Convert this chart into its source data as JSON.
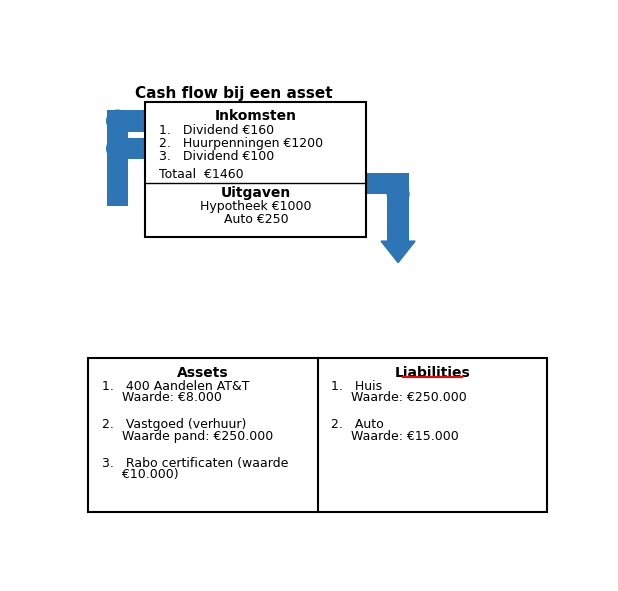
{
  "title": "Cash flow bij een asset",
  "title_fontsize": 11,
  "arrow_color": "#2E75B6",
  "inkomsten_header": "Inkomsten",
  "inkomsten_items": [
    "1.   Dividend €160",
    "2.   Huurpenningen €1200",
    "3.   Dividend €100"
  ],
  "totaal_line": "Totaal  €1460",
  "uitgaven_header": "Uitgaven",
  "uitgaven_items": [
    "Hypotheek €1000",
    "Auto €250"
  ],
  "assets_header": "Assets",
  "assets_items": [
    [
      "1.   400 Aandelen AT&T",
      "     Waarde: €8.000"
    ],
    [
      "2.   Vastgoed (verhuur)",
      "     Waarde pand: €250.000"
    ],
    [
      "3.   Rabo certificaten (waarde",
      "     €10.000)"
    ]
  ],
  "liabilities_header": "Liabilities",
  "liabilities_items": [
    [
      "1.   Huis",
      "     Waarde: €250.000"
    ],
    [
      "2.   Auto",
      "     Waarde: €15.000"
    ]
  ],
  "background_color": "#ffffff",
  "font_size": 9
}
